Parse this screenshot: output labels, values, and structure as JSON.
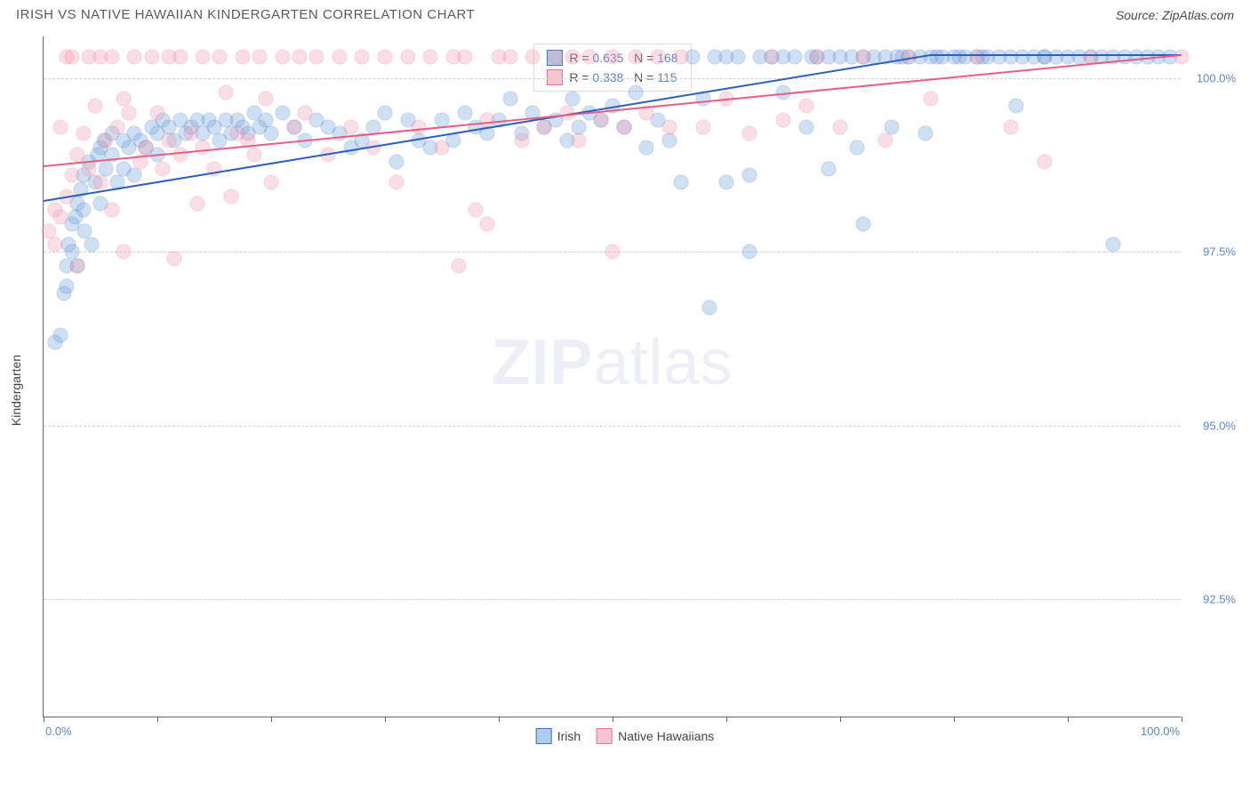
{
  "header": {
    "title": "IRISH VS NATIVE HAWAIIAN KINDERGARTEN CORRELATION CHART",
    "source": "Source: ZipAtlas.com"
  },
  "chart": {
    "type": "scatter",
    "ylabel": "Kindergarten",
    "xlim": [
      0,
      100
    ],
    "ylim": [
      90.8,
      100.6
    ],
    "xtick_positions": [
      0,
      10,
      20,
      30,
      40,
      50,
      60,
      70,
      80,
      90,
      100
    ],
    "xtick_labels_shown": {
      "0": "0.0%",
      "100": "100.0%"
    },
    "ytick_positions": [
      92.5,
      95.0,
      97.5,
      100.0
    ],
    "ytick_labels": [
      "92.5%",
      "95.0%",
      "97.5%",
      "100.0%"
    ],
    "background_color": "#ffffff",
    "grid_color": "#d0d0d0",
    "point_radius": 8.5,
    "point_border_width": 1,
    "point_fill_opacity": 0.32,
    "watermark": {
      "left": "ZIP",
      "right": "atlas"
    },
    "series": [
      {
        "name": "Irish",
        "color": "#6fa0db",
        "border_color": "#3f74c2",
        "legend_swatch_fill": "#aeccee",
        "R_label": "R = ",
        "R_value": "0.635",
        "N_label": "N = ",
        "N_value": "168",
        "trend": {
          "x1": 0,
          "y1": 98.25,
          "x2": 78,
          "y2": 100.35,
          "x3": 100,
          "y3": 100.35,
          "color": "#2b5fc0",
          "width": 2
        },
        "points": [
          [
            1,
            96.2
          ],
          [
            1.5,
            96.3
          ],
          [
            1.8,
            96.9
          ],
          [
            2,
            97.0
          ],
          [
            2,
            97.3
          ],
          [
            2.2,
            97.6
          ],
          [
            2.5,
            97.5
          ],
          [
            2.5,
            97.9
          ],
          [
            2.8,
            98.0
          ],
          [
            3,
            97.3
          ],
          [
            3,
            98.2
          ],
          [
            3.3,
            98.4
          ],
          [
            3.5,
            98.1
          ],
          [
            3.5,
            98.6
          ],
          [
            3.6,
            97.8
          ],
          [
            4,
            98.8
          ],
          [
            4.2,
            97.6
          ],
          [
            4.5,
            98.5
          ],
          [
            4.8,
            98.9
          ],
          [
            5,
            98.2
          ],
          [
            5,
            99.0
          ],
          [
            5.3,
            99.1
          ],
          [
            5.5,
            98.7
          ],
          [
            6,
            98.9
          ],
          [
            6,
            99.2
          ],
          [
            6.5,
            98.5
          ],
          [
            7,
            99.1
          ],
          [
            7,
            98.7
          ],
          [
            7.5,
            99.0
          ],
          [
            8,
            99.2
          ],
          [
            8,
            98.6
          ],
          [
            8.5,
            99.1
          ],
          [
            9,
            99.0
          ],
          [
            9.5,
            99.3
          ],
          [
            10,
            99.2
          ],
          [
            10,
            98.9
          ],
          [
            10.5,
            99.4
          ],
          [
            11,
            99.3
          ],
          [
            11.5,
            99.1
          ],
          [
            12,
            99.4
          ],
          [
            12.5,
            99.2
          ],
          [
            13,
            99.3
          ],
          [
            13.5,
            99.4
          ],
          [
            14,
            99.2
          ],
          [
            14.5,
            99.4
          ],
          [
            15,
            99.3
          ],
          [
            15.5,
            99.1
          ],
          [
            16,
            99.4
          ],
          [
            16.5,
            99.2
          ],
          [
            17,
            99.4
          ],
          [
            17.5,
            99.3
          ],
          [
            18,
            99.2
          ],
          [
            18.5,
            99.5
          ],
          [
            19,
            99.3
          ],
          [
            19.5,
            99.4
          ],
          [
            20,
            99.2
          ],
          [
            21,
            99.5
          ],
          [
            22,
            99.3
          ],
          [
            23,
            99.1
          ],
          [
            24,
            99.4
          ],
          [
            25,
            99.3
          ],
          [
            26,
            99.2
          ],
          [
            27,
            99.0
          ],
          [
            28,
            99.1
          ],
          [
            29,
            99.3
          ],
          [
            30,
            99.5
          ],
          [
            31,
            98.8
          ],
          [
            32,
            99.4
          ],
          [
            33,
            99.1
          ],
          [
            34,
            99.0
          ],
          [
            35,
            99.4
          ],
          [
            36,
            99.1
          ],
          [
            37,
            99.5
          ],
          [
            38,
            99.3
          ],
          [
            39,
            99.2
          ],
          [
            40,
            99.4
          ],
          [
            41,
            99.7
          ],
          [
            42,
            99.2
          ],
          [
            43,
            99.5
          ],
          [
            44,
            99.3
          ],
          [
            45,
            99.4
          ],
          [
            46,
            99.1
          ],
          [
            46.5,
            99.7
          ],
          [
            47,
            99.3
          ],
          [
            48,
            99.5
          ],
          [
            49,
            99.4
          ],
          [
            50,
            99.6
          ],
          [
            51,
            99.3
          ],
          [
            52,
            99.8
          ],
          [
            53,
            99.0
          ],
          [
            54,
            99.4
          ],
          [
            55,
            99.1
          ],
          [
            56,
            98.5
          ],
          [
            57,
            100.3
          ],
          [
            58,
            99.7
          ],
          [
            58.5,
            96.7
          ],
          [
            59,
            100.3
          ],
          [
            60,
            100.3
          ],
          [
            60,
            98.5
          ],
          [
            61,
            100.3
          ],
          [
            62,
            98.6
          ],
          [
            62,
            97.5
          ],
          [
            63,
            100.3
          ],
          [
            64,
            100.3
          ],
          [
            65,
            99.8
          ],
          [
            65,
            100.3
          ],
          [
            66,
            100.3
          ],
          [
            67,
            99.3
          ],
          [
            67.5,
            100.3
          ],
          [
            68,
            100.3
          ],
          [
            69,
            100.3
          ],
          [
            69,
            98.7
          ],
          [
            70,
            100.3
          ],
          [
            71,
            100.3
          ],
          [
            71.5,
            99.0
          ],
          [
            72,
            100.3
          ],
          [
            72,
            97.9
          ],
          [
            73,
            100.3
          ],
          [
            74,
            100.3
          ],
          [
            74.5,
            99.3
          ],
          [
            75,
            100.3
          ],
          [
            75.5,
            100.3
          ],
          [
            76,
            100.3
          ],
          [
            77,
            100.3
          ],
          [
            77.5,
            99.2
          ],
          [
            78,
            100.3
          ],
          [
            78.5,
            100.3
          ],
          [
            79,
            100.3
          ],
          [
            80,
            100.3
          ],
          [
            80.5,
            100.3
          ],
          [
            81,
            100.3
          ],
          [
            82,
            100.3
          ],
          [
            82.5,
            100.3
          ],
          [
            83,
            100.3
          ],
          [
            84,
            100.3
          ],
          [
            85,
            100.3
          ],
          [
            85.5,
            99.6
          ],
          [
            86,
            100.3
          ],
          [
            87,
            100.3
          ],
          [
            88,
            100.3
          ],
          [
            88,
            100.3
          ],
          [
            89,
            100.3
          ],
          [
            90,
            100.3
          ],
          [
            91,
            100.3
          ],
          [
            92,
            100.3
          ],
          [
            93,
            100.3
          ],
          [
            94,
            100.3
          ],
          [
            94,
            97.6
          ],
          [
            95,
            100.3
          ],
          [
            96,
            100.3
          ],
          [
            97,
            100.3
          ],
          [
            98,
            100.3
          ],
          [
            99,
            100.3
          ]
        ]
      },
      {
        "name": "Native Hawaiians",
        "color": "#f29ab0",
        "border_color": "#e77190",
        "legend_swatch_fill": "#f7c5d2",
        "R_label": "R = ",
        "R_value": "0.338",
        "N_label": "N = ",
        "N_value": "115",
        "trend": {
          "x1": 0,
          "y1": 98.75,
          "x2": 100,
          "y2": 100.35,
          "color": "#e45f84",
          "width": 2
        },
        "points": [
          [
            0.5,
            97.8
          ],
          [
            1,
            98.1
          ],
          [
            1,
            97.6
          ],
          [
            1.5,
            98.0
          ],
          [
            1.5,
            99.3
          ],
          [
            2,
            98.3
          ],
          [
            2,
            100.3
          ],
          [
            2.5,
            100.3
          ],
          [
            2.5,
            98.6
          ],
          [
            3,
            98.9
          ],
          [
            3,
            97.3
          ],
          [
            3.5,
            99.2
          ],
          [
            4,
            100.3
          ],
          [
            4,
            98.7
          ],
          [
            4.5,
            99.6
          ],
          [
            5,
            98.5
          ],
          [
            5,
            100.3
          ],
          [
            5.5,
            99.1
          ],
          [
            6,
            98.1
          ],
          [
            6,
            100.3
          ],
          [
            6.5,
            99.3
          ],
          [
            7,
            99.7
          ],
          [
            7,
            97.5
          ],
          [
            7.5,
            99.5
          ],
          [
            8,
            100.3
          ],
          [
            8.5,
            98.8
          ],
          [
            9,
            99.0
          ],
          [
            9.5,
            100.3
          ],
          [
            10,
            99.5
          ],
          [
            10.5,
            98.7
          ],
          [
            11,
            100.3
          ],
          [
            11,
            99.1
          ],
          [
            11.5,
            97.4
          ],
          [
            12,
            98.9
          ],
          [
            12,
            100.3
          ],
          [
            13,
            99.2
          ],
          [
            13.5,
            98.2
          ],
          [
            14,
            100.3
          ],
          [
            14,
            99.0
          ],
          [
            15,
            98.7
          ],
          [
            15.5,
            100.3
          ],
          [
            16,
            99.8
          ],
          [
            16.5,
            98.3
          ],
          [
            17,
            99.2
          ],
          [
            17.5,
            100.3
          ],
          [
            18,
            99.1
          ],
          [
            18.5,
            98.9
          ],
          [
            19,
            100.3
          ],
          [
            19.5,
            99.7
          ],
          [
            20,
            98.5
          ],
          [
            21,
            100.3
          ],
          [
            22,
            99.3
          ],
          [
            22.5,
            100.3
          ],
          [
            23,
            99.5
          ],
          [
            24,
            100.3
          ],
          [
            25,
            98.9
          ],
          [
            26,
            100.3
          ],
          [
            27,
            99.3
          ],
          [
            28,
            100.3
          ],
          [
            29,
            99.0
          ],
          [
            30,
            100.3
          ],
          [
            31,
            98.5
          ],
          [
            32,
            100.3
          ],
          [
            33,
            99.3
          ],
          [
            34,
            100.3
          ],
          [
            35,
            99.0
          ],
          [
            36,
            100.3
          ],
          [
            36.5,
            97.3
          ],
          [
            37,
            100.3
          ],
          [
            38,
            98.1
          ],
          [
            39,
            99.4
          ],
          [
            39,
            97.9
          ],
          [
            40,
            100.3
          ],
          [
            41,
            100.3
          ],
          [
            42,
            99.1
          ],
          [
            43,
            100.3
          ],
          [
            44,
            99.3
          ],
          [
            45,
            100.3
          ],
          [
            46,
            99.5
          ],
          [
            46.5,
            100.3
          ],
          [
            47,
            99.1
          ],
          [
            48,
            100.3
          ],
          [
            49,
            99.4
          ],
          [
            50,
            100.3
          ],
          [
            50,
            97.5
          ],
          [
            51,
            99.3
          ],
          [
            52,
            100.3
          ],
          [
            53,
            99.5
          ],
          [
            54,
            100.3
          ],
          [
            55,
            99.3
          ],
          [
            56,
            100.3
          ],
          [
            58,
            99.3
          ],
          [
            60,
            99.7
          ],
          [
            62,
            99.2
          ],
          [
            64,
            100.3
          ],
          [
            65,
            99.4
          ],
          [
            67,
            99.6
          ],
          [
            68,
            100.3
          ],
          [
            70,
            99.3
          ],
          [
            72,
            100.3
          ],
          [
            74,
            99.1
          ],
          [
            76,
            100.3
          ],
          [
            78,
            99.7
          ],
          [
            82,
            100.3
          ],
          [
            85,
            99.3
          ],
          [
            88,
            98.8
          ],
          [
            92,
            100.3
          ],
          [
            100,
            100.3
          ]
        ]
      }
    ]
  }
}
